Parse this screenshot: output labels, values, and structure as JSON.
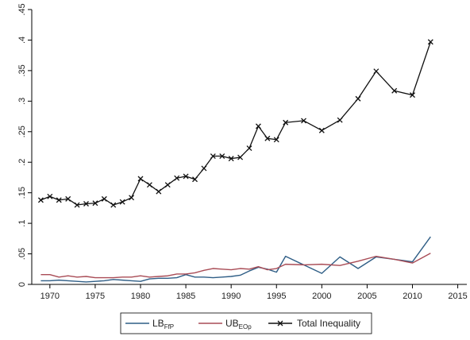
{
  "chart_data": {
    "type": "line",
    "title": "",
    "xlabel": "",
    "ylabel": "",
    "xlim": [
      1968,
      2016
    ],
    "ylim": [
      0,
      0.45
    ],
    "x_ticks": [
      1970,
      1975,
      1980,
      1985,
      1990,
      1995,
      2000,
      2005,
      2010,
      2015
    ],
    "x_tick_labels": [
      "1970",
      "1975",
      "1980",
      "1985",
      "1990",
      "1995",
      "2000",
      "2005",
      "2010",
      "2015"
    ],
    "y_ticks": [
      0,
      0.05,
      0.1,
      0.15,
      0.2,
      0.25,
      0.3,
      0.35,
      0.4,
      0.45
    ],
    "y_tick_labels": [
      "0",
      ".05",
      ".1",
      ".15",
      ".2",
      ".25",
      ".3",
      ".35",
      ".4",
      ".45"
    ],
    "grid": false,
    "legend_position": "bottom",
    "series": [
      {
        "name": "LB",
        "name_sub": "FfP",
        "color": "#2f5e86",
        "marker": "none",
        "x": [
          1969,
          1970,
          1971,
          1972,
          1973,
          1974,
          1975,
          1976,
          1977,
          1978,
          1979,
          1980,
          1981,
          1982,
          1983,
          1984,
          1985,
          1986,
          1987,
          1988,
          1989,
          1990,
          1991,
          1992,
          1993,
          1994,
          1995,
          1996,
          1998,
          2000,
          2002,
          2004,
          2006,
          2008,
          2010,
          2012
        ],
        "y": [
          0.006,
          0.006,
          0.007,
          0.006,
          0.005,
          0.004,
          0.005,
          0.006,
          0.008,
          0.007,
          0.006,
          0.005,
          0.009,
          0.01,
          0.01,
          0.011,
          0.016,
          0.012,
          0.012,
          0.011,
          0.012,
          0.013,
          0.015,
          0.022,
          0.028,
          0.025,
          0.02,
          0.046,
          0.032,
          0.018,
          0.045,
          0.026,
          0.045,
          0.041,
          0.037,
          0.078
        ]
      },
      {
        "name": "UB",
        "name_sub": "EOp",
        "color": "#a94c56",
        "marker": "none",
        "x": [
          1969,
          1970,
          1971,
          1972,
          1973,
          1974,
          1975,
          1976,
          1977,
          1978,
          1979,
          1980,
          1981,
          1982,
          1983,
          1984,
          1985,
          1986,
          1987,
          1988,
          1989,
          1990,
          1991,
          1992,
          1993,
          1994,
          1995,
          1996,
          1998,
          2000,
          2002,
          2004,
          2006,
          2008,
          2010,
          2012
        ],
        "y": [
          0.016,
          0.016,
          0.012,
          0.014,
          0.012,
          0.013,
          0.011,
          0.011,
          0.011,
          0.012,
          0.012,
          0.014,
          0.012,
          0.013,
          0.014,
          0.017,
          0.017,
          0.019,
          0.023,
          0.026,
          0.025,
          0.024,
          0.026,
          0.025,
          0.029,
          0.024,
          0.026,
          0.033,
          0.032,
          0.033,
          0.031,
          0.038,
          0.046,
          0.041,
          0.035,
          0.051
        ]
      },
      {
        "name": "Total Inequality",
        "color": "#111111",
        "marker": "x",
        "x": [
          1969,
          1970,
          1971,
          1972,
          1973,
          1974,
          1975,
          1976,
          1977,
          1978,
          1979,
          1980,
          1981,
          1982,
          1983,
          1984,
          1985,
          1986,
          1987,
          1988,
          1989,
          1990,
          1991,
          1992,
          1993,
          1994,
          1995,
          1996,
          1998,
          2000,
          2002,
          2004,
          2006,
          2008,
          2010,
          2012
        ],
        "y": [
          0.138,
          0.144,
          0.138,
          0.14,
          0.13,
          0.132,
          0.133,
          0.14,
          0.13,
          0.135,
          0.142,
          0.173,
          0.163,
          0.152,
          0.163,
          0.174,
          0.177,
          0.172,
          0.19,
          0.21,
          0.21,
          0.206,
          0.208,
          0.223,
          0.259,
          0.239,
          0.237,
          0.265,
          0.268,
          0.252,
          0.269,
          0.304,
          0.349,
          0.317,
          0.31,
          0.397
        ]
      }
    ]
  }
}
